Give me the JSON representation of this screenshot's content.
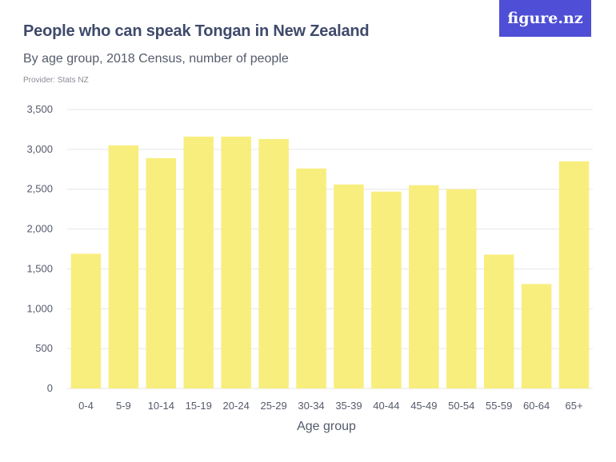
{
  "header": {
    "title": "People who can speak Tongan in New Zealand",
    "subtitle": "By age group, 2018 Census, number of people",
    "provider": "Provider: Stats NZ",
    "logo": "figure.nz"
  },
  "colors": {
    "bar": "#f8ee7e",
    "grid": "#e6e6e6",
    "logo_bg": "#4e4ed6",
    "title": "#3f4a6b"
  },
  "chart_data": {
    "type": "bar",
    "title": "People who can speak Tongan in New Zealand",
    "subtitle": "By age group, 2018 Census, number of people",
    "xlabel": "Age group",
    "ylabel": "",
    "categories": [
      "0-4",
      "5-9",
      "10-14",
      "15-19",
      "20-24",
      "25-29",
      "30-34",
      "35-39",
      "40-44",
      "45-49",
      "50-54",
      "55-59",
      "60-64",
      "65+"
    ],
    "values": [
      1690,
      3050,
      2890,
      3160,
      3160,
      3130,
      2760,
      2560,
      2470,
      2550,
      2500,
      1680,
      1310,
      2850
    ],
    "ylim": [
      0,
      3500
    ],
    "yticks": [
      0,
      500,
      1000,
      1500,
      2000,
      2500,
      3000,
      3500
    ],
    "ytick_labels": [
      "0",
      "500",
      "1,000",
      "1,500",
      "2,000",
      "2,500",
      "3,000",
      "3,500"
    ],
    "grid": true,
    "legend": "none"
  }
}
